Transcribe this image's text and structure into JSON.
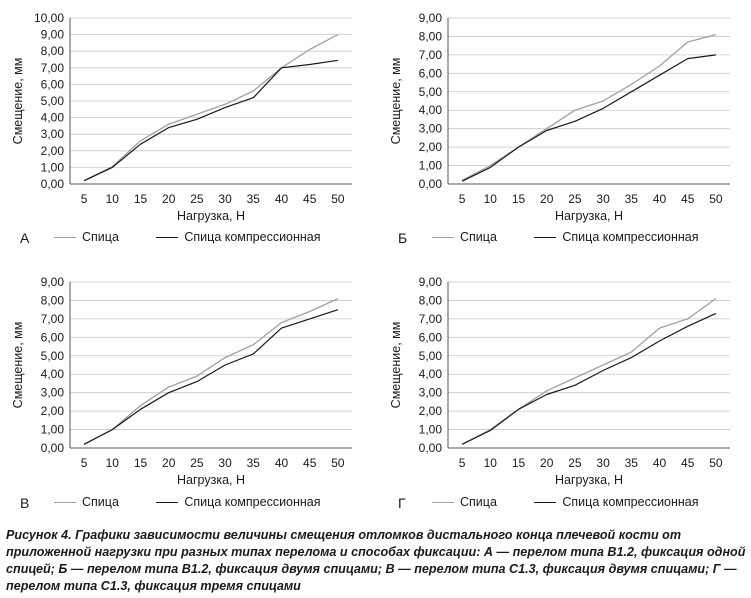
{
  "chart_data": [
    {
      "type": "line",
      "panel_label": "А",
      "x": [
        5,
        10,
        15,
        20,
        25,
        30,
        35,
        40,
        45,
        50
      ],
      "xlabel": "Нагрузка, Н",
      "ylabel": "Смещение, мм",
      "ylim": [
        0,
        10
      ],
      "yticks": [
        "0,00",
        "1,00",
        "2,00",
        "3,00",
        "4,00",
        "5,00",
        "6,00",
        "7,00",
        "8,00",
        "9,00",
        "10,00"
      ],
      "series": [
        {
          "name": "Спица",
          "color": "#a0a0a0",
          "values": [
            0.2,
            1.05,
            2.6,
            3.6,
            4.2,
            4.8,
            5.6,
            7.0,
            8.1,
            9.0
          ]
        },
        {
          "name": "Спица компрессионная",
          "color": "#1a1a1a",
          "values": [
            0.2,
            1.0,
            2.4,
            3.4,
            3.9,
            4.6,
            5.2,
            7.0,
            7.2,
            7.45
          ]
        }
      ]
    },
    {
      "type": "line",
      "panel_label": "Б",
      "x": [
        5,
        10,
        15,
        20,
        25,
        30,
        35,
        40,
        45,
        50
      ],
      "xlabel": "Нагрузка, Н",
      "ylabel": "Смещение, мм",
      "ylim": [
        0,
        9
      ],
      "yticks": [
        "0,00",
        "1,00",
        "2,00",
        "3,00",
        "4,00",
        "5,00",
        "6,00",
        "7,00",
        "8,00",
        "9,00"
      ],
      "series": [
        {
          "name": "Спица",
          "color": "#a0a0a0",
          "values": [
            0.2,
            1.0,
            2.0,
            3.0,
            4.0,
            4.5,
            5.4,
            6.4,
            7.7,
            8.1
          ]
        },
        {
          "name": "Спица компрессионная",
          "color": "#1a1a1a",
          "values": [
            0.15,
            0.9,
            2.0,
            2.9,
            3.4,
            4.1,
            5.0,
            5.9,
            6.8,
            7.0
          ]
        }
      ]
    },
    {
      "type": "line",
      "panel_label": "В",
      "x": [
        5,
        10,
        15,
        20,
        25,
        30,
        35,
        40,
        45,
        50
      ],
      "xlabel": "Нагрузка, Н",
      "ylabel": "Смещение, мм",
      "ylim": [
        0,
        9
      ],
      "yticks": [
        "0,00",
        "1,00",
        "2,00",
        "3,00",
        "4,00",
        "5,00",
        "6,00",
        "7,00",
        "8,00",
        "9,00"
      ],
      "series": [
        {
          "name": "Спица",
          "color": "#a0a0a0",
          "values": [
            0.2,
            1.0,
            2.3,
            3.3,
            3.9,
            4.9,
            5.6,
            6.8,
            7.4,
            8.1
          ]
        },
        {
          "name": "Спица компрессионная",
          "color": "#1a1a1a",
          "values": [
            0.2,
            1.0,
            2.1,
            3.0,
            3.6,
            4.5,
            5.1,
            6.5,
            7.0,
            7.5
          ]
        }
      ]
    },
    {
      "type": "line",
      "panel_label": "Г",
      "x": [
        5,
        10,
        15,
        20,
        25,
        30,
        35,
        40,
        45,
        50
      ],
      "xlabel": "Нагрузка, Н",
      "ylabel": "Смещение, мм",
      "ylim": [
        0,
        9
      ],
      "yticks": [
        "0,00",
        "1,00",
        "2,00",
        "3,00",
        "4,00",
        "5,00",
        "6,00",
        "7,00",
        "8,00",
        "9,00"
      ],
      "series": [
        {
          "name": "Спица",
          "color": "#a0a0a0",
          "values": [
            0.2,
            1.0,
            2.1,
            3.1,
            3.8,
            4.5,
            5.2,
            6.5,
            7.0,
            8.1
          ]
        },
        {
          "name": "Спица компрессионная",
          "color": "#1a1a1a",
          "values": [
            0.2,
            0.95,
            2.1,
            2.9,
            3.4,
            4.2,
            4.9,
            5.8,
            6.6,
            7.3
          ]
        }
      ]
    }
  ],
  "caption": "Рисунок 4. Графики зависимости величины смещения отломков дистального конца плечевой кости от приложенной нагрузки при разных типах перелома и способах фиксации: А — перелом типа В1.2, фиксация одной спицей; Б — перелом типа В1.2, фиксация двумя спицами; В — перелом типа С1.3, фиксация двумя спицами; Г — перелом типа С1.3, фиксация тремя спицами"
}
